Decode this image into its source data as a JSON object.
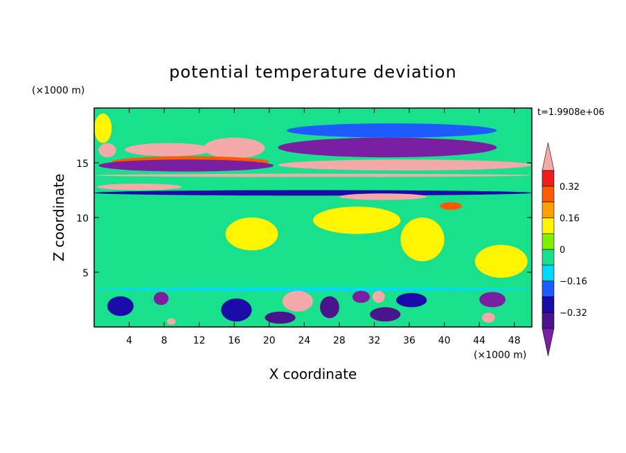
{
  "chart_data": {
    "type": "heatmap",
    "title": "potential temperature deviation",
    "xlabel": "X coordinate",
    "ylabel": "Z coordinate",
    "x_unit": "(×1000 m)",
    "y_unit": "(×1000 m)",
    "time_label": "t=1.9908e+06",
    "xlim": [
      0,
      50
    ],
    "ylim": [
      0,
      20
    ],
    "x_ticks": [
      4,
      8,
      12,
      16,
      20,
      24,
      28,
      32,
      36,
      40,
      44,
      48
    ],
    "y_ticks": [
      5,
      10,
      15
    ],
    "colorbar": {
      "levels": [
        -0.4,
        -0.32,
        -0.24,
        -0.16,
        -0.08,
        0,
        0.08,
        0.16,
        0.24,
        0.32,
        0.4
      ],
      "tick_labels": [
        "0.32",
        "0.16",
        "0",
        "−0.16",
        "−0.32"
      ],
      "tick_values": [
        0.32,
        0.16,
        0,
        -0.16,
        -0.32
      ],
      "colors_bottom_to_top": [
        "#7b1fa2",
        "#4a148c",
        "#1a0aa8",
        "#1e5bff",
        "#00d9ff",
        "#18e08c",
        "#80f000",
        "#fff500",
        "#ffa000",
        "#ff5a00",
        "#f01e1e",
        "#f5aaaa"
      ],
      "extend": "both"
    },
    "regions": [
      {
        "level": 0.44,
        "xr": [
          0,
          50
        ],
        "zr": [
          13.7,
          14.0
        ]
      },
      {
        "level": -0.3,
        "xr": [
          0,
          50
        ],
        "zr": [
          12.0,
          12.5
        ]
      },
      {
        "level": -0.12,
        "xr": [
          0,
          50
        ],
        "zr": [
          3.3,
          3.6
        ]
      },
      {
        "level": 0.4,
        "xr": [
          0.5,
          2.5
        ],
        "zr": [
          15.5,
          16.8
        ]
      },
      {
        "level": 0.44,
        "xr": [
          3.5,
          13.5
        ],
        "zr": [
          15.6,
          16.8
        ]
      },
      {
        "level": 0.44,
        "xr": [
          12.5,
          19.5
        ],
        "zr": [
          15.4,
          17.3
        ]
      },
      {
        "level": 0.3,
        "xr": [
          2,
          20
        ],
        "zr": [
          14.6,
          15.6
        ]
      },
      {
        "level": -0.44,
        "xr": [
          0.5,
          20.5
        ],
        "zr": [
          14.2,
          15.3
        ]
      },
      {
        "level": 0.44,
        "xr": [
          21,
          50
        ],
        "zr": [
          14.3,
          15.3
        ]
      },
      {
        "level": -0.44,
        "xr": [
          21,
          46
        ],
        "zr": [
          15.5,
          17.3
        ]
      },
      {
        "level": -0.2,
        "xr": [
          22,
          46
        ],
        "zr": [
          17.3,
          18.6
        ]
      },
      {
        "level": 0.1,
        "xr": [
          0,
          2
        ],
        "zr": [
          16.8,
          19.5
        ]
      },
      {
        "level": 0.44,
        "xr": [
          0.3,
          10
        ],
        "zr": [
          12.5,
          13.1
        ]
      },
      {
        "level": 0.44,
        "xr": [
          28,
          38
        ],
        "zr": [
          11.6,
          12.2
        ]
      },
      {
        "level": 0.3,
        "xr": [
          39.5,
          42
        ],
        "zr": [
          10.7,
          11.4
        ]
      },
      {
        "level": 0.1,
        "xr": [
          15,
          21
        ],
        "zr": [
          7,
          10
        ]
      },
      {
        "level": 0.1,
        "xr": [
          25,
          35
        ],
        "zr": [
          8.5,
          11
        ]
      },
      {
        "level": 0.1,
        "xr": [
          35,
          40
        ],
        "zr": [
          6,
          10
        ]
      },
      {
        "level": 0.1,
        "xr": [
          43.5,
          49.5
        ],
        "zr": [
          4.5,
          7.5
        ]
      },
      {
        "level": 0.44,
        "xr": [
          21.5,
          25
        ],
        "zr": [
          1.4,
          3.3
        ]
      },
      {
        "level": -0.28,
        "xr": [
          1.5,
          4.5
        ],
        "zr": [
          1.0,
          2.8
        ]
      },
      {
        "level": -0.44,
        "xr": [
          6.8,
          8.5
        ],
        "zr": [
          2.0,
          3.2
        ]
      },
      {
        "level": -0.28,
        "xr": [
          14.5,
          18
        ],
        "zr": [
          0.5,
          2.6
        ]
      },
      {
        "level": -0.36,
        "xr": [
          19.5,
          23
        ],
        "zr": [
          0.3,
          1.4
        ]
      },
      {
        "level": -0.36,
        "xr": [
          25.8,
          28
        ],
        "zr": [
          0.8,
          2.8
        ]
      },
      {
        "level": -0.44,
        "xr": [
          29.5,
          31.5
        ],
        "zr": [
          2.2,
          3.3
        ]
      },
      {
        "level": 0.44,
        "xr": [
          31.8,
          33.2
        ],
        "zr": [
          2.2,
          3.3
        ]
      },
      {
        "level": -0.36,
        "xr": [
          31.5,
          35
        ],
        "zr": [
          0.5,
          1.8
        ]
      },
      {
        "level": -0.28,
        "xr": [
          34.5,
          38
        ],
        "zr": [
          1.8,
          3.1
        ]
      },
      {
        "level": -0.44,
        "xr": [
          44,
          47
        ],
        "zr": [
          1.8,
          3.2
        ]
      },
      {
        "level": 0.44,
        "xr": [
          44.3,
          45.8
        ],
        "zr": [
          0.4,
          1.3
        ]
      },
      {
        "level": 0.44,
        "xr": [
          8.3,
          9.3
        ],
        "zr": [
          0.2,
          0.8
        ]
      }
    ]
  }
}
